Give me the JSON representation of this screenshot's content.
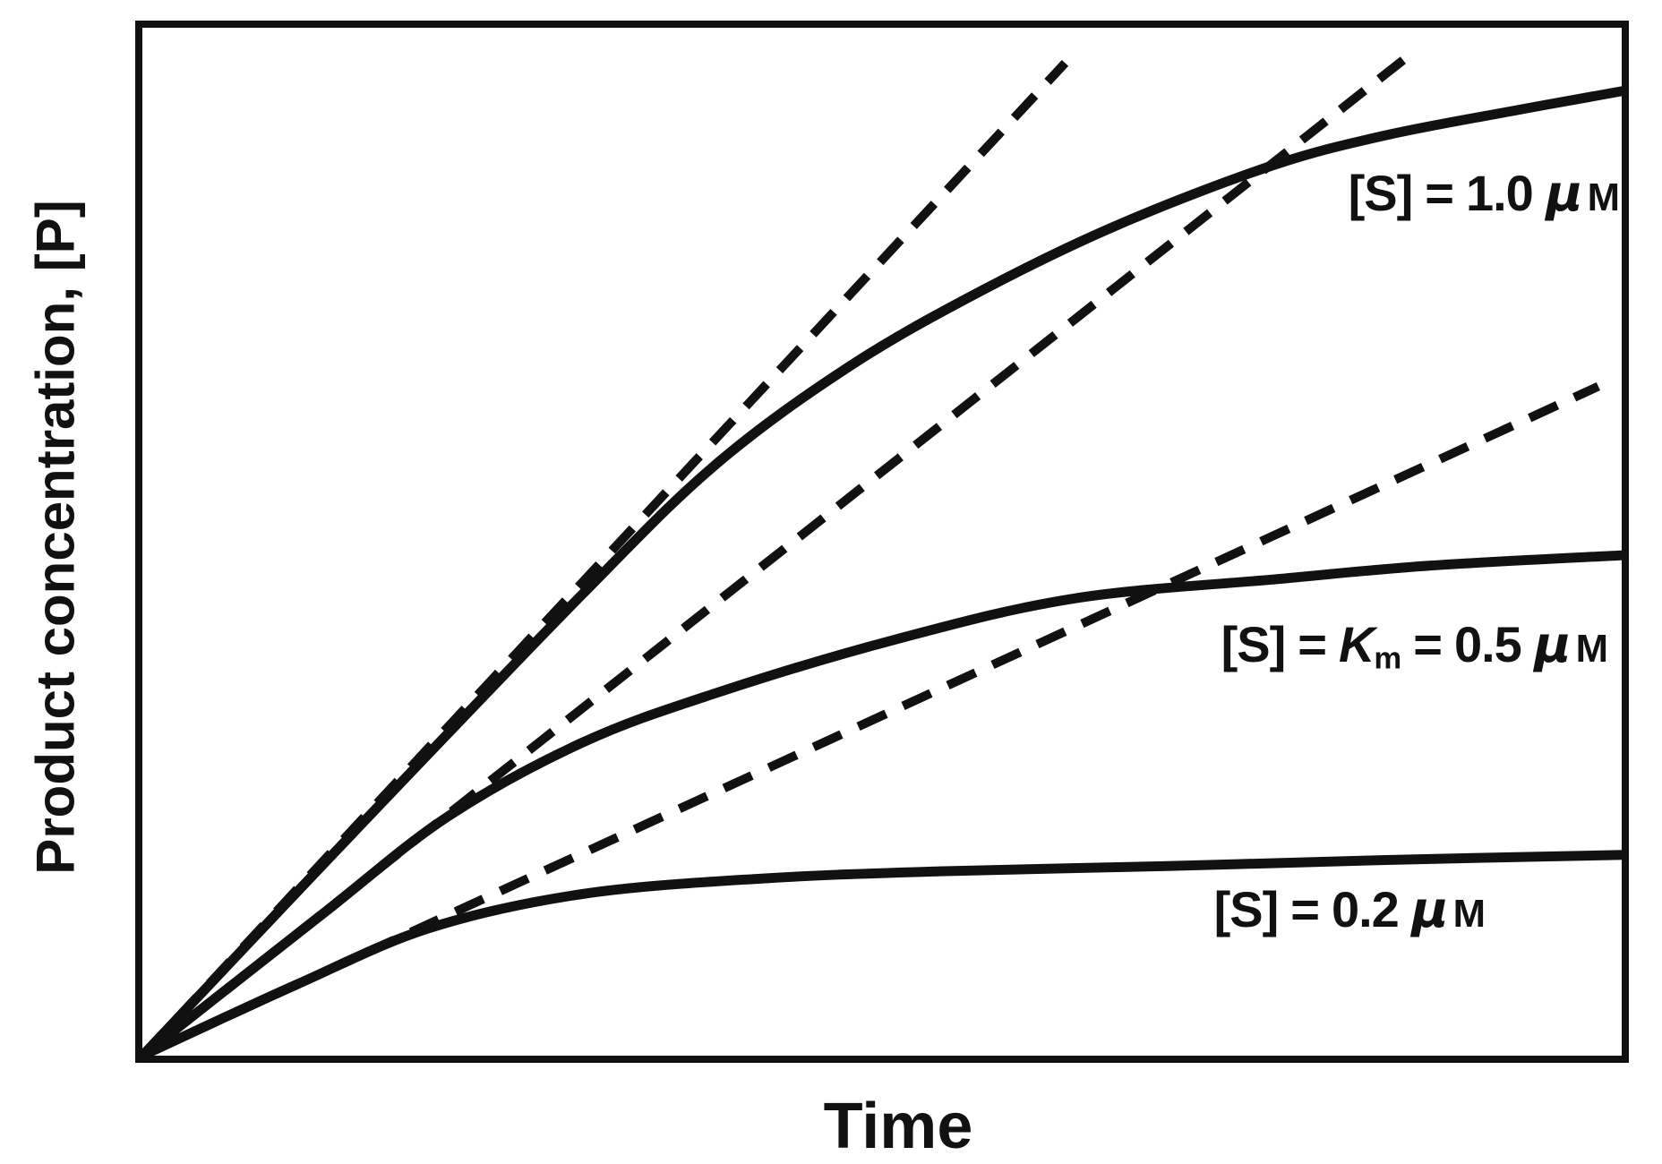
{
  "figure": {
    "ink_color": "#111111",
    "background": "#ffffff"
  },
  "axes": {
    "x_label": "Time",
    "y_label": "Product concentration, [P]"
  },
  "labels": {
    "s1": {
      "open": "[S]",
      "eq": "=",
      "value": "1.0",
      "mu": "μ",
      "unit": "M"
    },
    "s05": {
      "open": "[S]",
      "eq": "=",
      "kvar": "K",
      "ksub": "m",
      "eq2": "=",
      "value": "0.5",
      "mu": "μ",
      "unit": "M"
    },
    "s02": {
      "open": "[S]",
      "eq": "=",
      "value": "0.2",
      "mu": "μ",
      "unit": "M"
    }
  },
  "chart_data": {
    "type": "line",
    "title": "",
    "xlabel": "Time",
    "ylabel": "Product concentration, [P]",
    "axis_note": "Qualitative enzyme-kinetics sketch: no tick marks or numeric scales shown; coordinates below are fractions of the plot box (x = time fraction, y = [P] fraction).",
    "legend_position": "labels drawn next to curves inside plot",
    "grid": false,
    "series": [
      {
        "name": "[S] = 1.0 μM",
        "style": "solid",
        "points": [
          [
            0,
            0
          ],
          [
            0.146,
            0.222
          ],
          [
            0.297,
            0.448
          ],
          [
            0.387,
            0.574
          ],
          [
            0.478,
            0.67
          ],
          [
            0.568,
            0.744
          ],
          [
            0.659,
            0.807
          ],
          [
            0.762,
            0.864
          ],
          [
            0.84,
            0.894
          ],
          [
            0.931,
            0.919
          ],
          [
            1.0,
            0.937
          ]
        ]
      },
      {
        "name": "[S] = Km = 0.5 μM",
        "style": "solid",
        "points": [
          [
            0,
            0
          ],
          [
            0.122,
            0.138
          ],
          [
            0.206,
            0.232
          ],
          [
            0.297,
            0.304
          ],
          [
            0.387,
            0.352
          ],
          [
            0.508,
            0.404
          ],
          [
            0.629,
            0.444
          ],
          [
            0.768,
            0.463
          ],
          [
            0.87,
            0.476
          ],
          [
            1.0,
            0.486
          ]
        ]
      },
      {
        "name": "[S] = 0.2 μM",
        "style": "solid",
        "points": [
          [
            0,
            0
          ],
          [
            0.104,
            0.069
          ],
          [
            0.194,
            0.124
          ],
          [
            0.297,
            0.157
          ],
          [
            0.418,
            0.172
          ],
          [
            0.538,
            0.179
          ],
          [
            0.689,
            0.184
          ],
          [
            0.84,
            0.19
          ],
          [
            1.0,
            0.195
          ]
        ]
      },
      {
        "name": "initial-velocity tangent, [S] = 1.0 μM",
        "style": "dashed",
        "points": [
          [
            0,
            0
          ],
          [
            0.623,
            0.964
          ]
        ]
      },
      {
        "name": "initial-velocity tangent, [S] = 0.5 μM",
        "style": "dashed",
        "points": [
          [
            0,
            0
          ],
          [
            0.854,
            0.97
          ]
        ]
      },
      {
        "name": "initial-velocity tangent, [S] = 0.2 μM",
        "style": "dashed",
        "points": [
          [
            0,
            0
          ],
          [
            0.983,
            0.65
          ]
        ]
      }
    ]
  }
}
